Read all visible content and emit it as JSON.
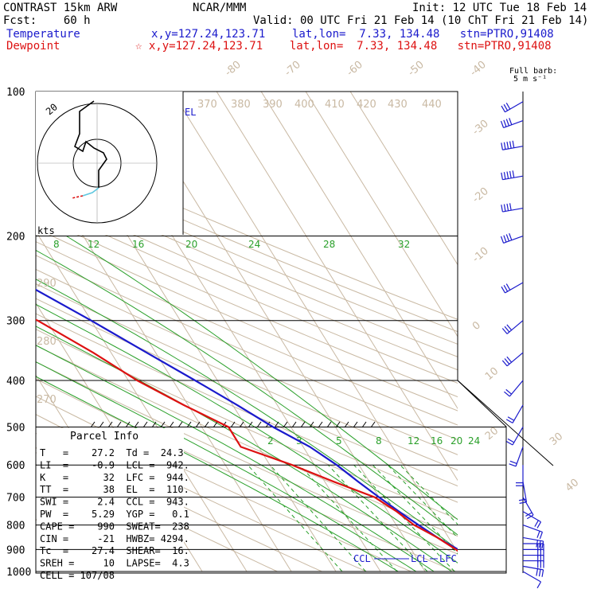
{
  "header": {
    "model": "CONTRAST 15km ARW",
    "org": "NCAR/MMM",
    "init": "Init: 12 UTC Tue 18 Feb 14",
    "fcst": "Fcst:    60 h",
    "valid": "Valid: 00 UTC Fri 21 Feb 14 (10 ChT Fri 21 Feb 14)",
    "temp_label": "Temperature",
    "temp_loc": "x,y=127.24,123.71    lat,lon=  7.33, 134.48   stn=PTRO,91408",
    "dew_label": "Dewpoint",
    "dew_loc": "☆ x,y=127.24,123.71    lat,lon=  7.33, 134.48   stn=PTRO,91408",
    "barb_title": "Full barb:",
    "barb_unit": "5 m s⁻¹"
  },
  "colors": {
    "temperature": "#1a1acc",
    "dewpoint": "#dd1111",
    "isotherm": "#c9b9a3",
    "mixing_ratio": "#2aa02a",
    "adiabat": "#2aa02a"
  },
  "chart_data": {
    "type": "line",
    "title": "",
    "ylabel": "",
    "pressure_levels": [
      100,
      200,
      300,
      400,
      500,
      600,
      700,
      800,
      900,
      1000
    ],
    "isotherm_labels": [
      "-80",
      "-70",
      "-60",
      "-50",
      "-40",
      "-30",
      "-20",
      "-10",
      "0",
      "10",
      "20",
      "30",
      "40"
    ],
    "theta_labels": [
      "370",
      "380",
      "390",
      "400",
      "410",
      "420",
      "430",
      "440",
      "290",
      "280",
      "270"
    ],
    "mixing_ratio_labels_upper": [
      "8",
      "12",
      "16",
      "20",
      "24",
      "28",
      "32"
    ],
    "mixing_ratio_labels_lower": [
      "2",
      "3",
      "5",
      "8",
      "12",
      "16",
      "20",
      "24"
    ],
    "series": [
      {
        "name": "Temperature",
        "points": [
          [
            1000,
            26.5
          ],
          [
            950,
            23.5
          ],
          [
            900,
            20.5
          ],
          [
            850,
            17.5
          ],
          [
            800,
            15
          ],
          [
            750,
            12.5
          ],
          [
            700,
            10
          ],
          [
            650,
            7.5
          ],
          [
            600,
            5
          ],
          [
            550,
            1.5
          ],
          [
            500,
            -4
          ],
          [
            450,
            -9
          ],
          [
            400,
            -15
          ],
          [
            350,
            -22
          ],
          [
            300,
            -30
          ],
          [
            250,
            -40
          ],
          [
            200,
            -52
          ],
          [
            150,
            -66
          ],
          [
            120,
            -74
          ],
          [
            100,
            -82
          ]
        ]
      },
      {
        "name": "Dewpoint",
        "points": [
          [
            1000,
            24.3
          ],
          [
            950,
            22.3
          ],
          [
            900,
            20
          ],
          [
            850,
            17.5
          ],
          [
            800,
            14
          ],
          [
            750,
            12
          ],
          [
            700,
            9
          ],
          [
            650,
            2
          ],
          [
            600,
            -5
          ],
          [
            550,
            -14
          ],
          [
            500,
            -14
          ],
          [
            450,
            -21
          ],
          [
            400,
            -28
          ],
          [
            350,
            -34
          ],
          [
            300,
            -42
          ],
          [
            280,
            -48
          ],
          [
            250,
            -52
          ],
          [
            200,
            -66
          ],
          [
            150,
            -80
          ],
          [
            120,
            -87
          ],
          [
            100,
            -86
          ]
        ]
      }
    ],
    "markers": {
      "el": "EL",
      "ccl": "CCL",
      "lcl": "LCL",
      "lfc": "LFC"
    },
    "hodograph": {
      "label_kts": "kts",
      "ring_label": "20"
    },
    "wind_barbs": [
      {
        "p": 1000,
        "dir": 120,
        "spd": 8
      },
      {
        "p": 975,
        "dir": 100,
        "spd": 15
      },
      {
        "p": 950,
        "dir": 90,
        "spd": 15
      },
      {
        "p": 925,
        "dir": 90,
        "spd": 15
      },
      {
        "p": 900,
        "dir": 90,
        "spd": 15
      },
      {
        "p": 875,
        "dir": 90,
        "spd": 15
      },
      {
        "p": 850,
        "dir": 100,
        "spd": 15
      },
      {
        "p": 800,
        "dir": 110,
        "spd": 10
      },
      {
        "p": 750,
        "dir": 120,
        "spd": 10
      },
      {
        "p": 700,
        "dir": 150,
        "spd": 10
      },
      {
        "p": 650,
        "dir": 170,
        "spd": 10
      },
      {
        "p": 600,
        "dir": 180,
        "spd": 10
      },
      {
        "p": 550,
        "dir": 200,
        "spd": 10
      },
      {
        "p": 500,
        "dir": 210,
        "spd": 10
      },
      {
        "p": 450,
        "dir": 210,
        "spd": 10
      },
      {
        "p": 400,
        "dir": 220,
        "spd": 10
      },
      {
        "p": 350,
        "dir": 230,
        "spd": 15
      },
      {
        "p": 300,
        "dir": 230,
        "spd": 15
      },
      {
        "p": 250,
        "dir": 240,
        "spd": 15
      },
      {
        "p": 200,
        "dir": 250,
        "spd": 20
      },
      {
        "p": 175,
        "dir": 260,
        "spd": 20
      },
      {
        "p": 150,
        "dir": 260,
        "spd": 25
      },
      {
        "p": 130,
        "dir": 260,
        "spd": 25
      },
      {
        "p": 115,
        "dir": 250,
        "spd": 20
      },
      {
        "p": 105,
        "dir": 240,
        "spd": 15
      }
    ]
  },
  "parcel": {
    "title": "Parcel Info",
    "rows": [
      "T   =    27.2  Td =  24.3",
      "LI  =    -0.9  LCL =  942.",
      "K   =      32  LFC =  944.",
      "TT  =      38  EL  =  110.",
      "SWI =     2.4  CCL =  943.",
      "PW  =    5.29  YGP =   0.1",
      "CAPE =    990  SWEAT=  238",
      "CIN =     -21  HWBZ= 4294.",
      "Tc  =    27.4  SHEAR=  16.",
      "SREH =     10  LAPSE=  4.3",
      "CELL = 107/08"
    ]
  }
}
